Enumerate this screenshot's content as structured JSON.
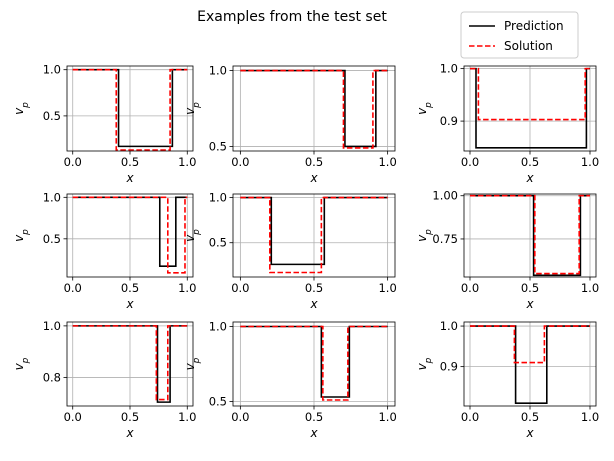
{
  "figure": {
    "title": "Examples from the test set",
    "legend": {
      "placement": "top-right",
      "items": [
        {
          "label": "Prediction",
          "color": "#000000",
          "style": "solid"
        },
        {
          "label": "Solution",
          "color": "#ff0000",
          "style": "dashed"
        }
      ]
    }
  },
  "chart_data": [
    {
      "type": "line",
      "xlabel": "x",
      "ylabel": "v_p",
      "xlim": [
        -0.05,
        1.05
      ],
      "ylim": [
        0.12,
        1.04
      ],
      "grid": true,
      "xticks": [
        0.0,
        0.5,
        1.0
      ],
      "xtick_labels": [
        "0.0",
        "0.5",
        "1.0"
      ],
      "yticks": [
        0.5,
        1.0
      ],
      "ytick_labels": [
        "0.5",
        "1.0"
      ],
      "series": [
        {
          "name": "Prediction",
          "color": "#000000",
          "dash": "solid",
          "x": [
            0,
            0.4,
            0.4,
            0.87,
            0.87,
            1
          ],
          "y": [
            1.0,
            1.0,
            0.17,
            0.17,
            1.0,
            1.0
          ]
        },
        {
          "name": "Solution",
          "color": "#ff0000",
          "dash": "dashed",
          "x": [
            0,
            0.38,
            0.38,
            0.85,
            0.85,
            1
          ],
          "y": [
            1.0,
            1.0,
            0.13,
            0.13,
            1.0,
            1.0
          ]
        }
      ]
    },
    {
      "type": "line",
      "xlabel": "x",
      "ylabel": "v_p",
      "xlim": [
        -0.05,
        1.05
      ],
      "ylim": [
        0.47,
        1.03
      ],
      "grid": true,
      "xticks": [
        0.0,
        0.5,
        1.0
      ],
      "xtick_labels": [
        "0.0",
        "0.5",
        "1.0"
      ],
      "yticks": [
        0.5,
        1.0
      ],
      "ytick_labels": [
        "0.5",
        "1.0"
      ],
      "series": [
        {
          "name": "Prediction",
          "color": "#000000",
          "dash": "solid",
          "x": [
            0,
            0.71,
            0.71,
            0.92,
            0.92,
            1
          ],
          "y": [
            1.0,
            1.0,
            0.5,
            0.5,
            1.0,
            1.0
          ]
        },
        {
          "name": "Solution",
          "color": "#ff0000",
          "dash": "dashed",
          "x": [
            0,
            0.7,
            0.7,
            0.9,
            0.9,
            1
          ],
          "y": [
            1.0,
            1.0,
            0.49,
            0.49,
            1.0,
            1.0
          ]
        }
      ]
    },
    {
      "type": "line",
      "xlabel": "x",
      "ylabel": "v_p",
      "xlim": [
        -0.05,
        1.05
      ],
      "ylim": [
        0.843,
        1.005
      ],
      "grid": true,
      "xticks": [
        0.0,
        0.5,
        1.0
      ],
      "xtick_labels": [
        "0.0",
        "0.5",
        "1.0"
      ],
      "yticks": [
        0.9,
        1.0
      ],
      "ytick_labels": [
        "0.9",
        "1.0"
      ],
      "series": [
        {
          "name": "Prediction",
          "color": "#000000",
          "dash": "solid",
          "x": [
            0,
            0.05,
            0.05,
            0.97,
            0.97,
            1
          ],
          "y": [
            1.0,
            1.0,
            0.849,
            0.849,
            1.0,
            1.0
          ]
        },
        {
          "name": "Solution",
          "color": "#ff0000",
          "dash": "dashed",
          "x": [
            0,
            0.07,
            0.07,
            0.96,
            0.96,
            1
          ],
          "y": [
            1.0,
            1.0,
            0.903,
            0.903,
            1.0,
            1.0
          ]
        }
      ]
    },
    {
      "type": "line",
      "xlabel": "x",
      "ylabel": "v_p",
      "xlim": [
        -0.05,
        1.05
      ],
      "ylim": [
        0.04,
        1.04
      ],
      "grid": true,
      "xticks": [
        0.0,
        0.5,
        1.0
      ],
      "xtick_labels": [
        "0.0",
        "0.5",
        "1.0"
      ],
      "yticks": [
        0.5,
        1.0
      ],
      "ytick_labels": [
        "0.5",
        "1.0"
      ],
      "series": [
        {
          "name": "Prediction",
          "color": "#000000",
          "dash": "solid",
          "x": [
            0,
            0.76,
            0.76,
            0.9,
            0.9,
            1
          ],
          "y": [
            1.0,
            1.0,
            0.17,
            0.17,
            1.0,
            1.0
          ]
        },
        {
          "name": "Solution",
          "color": "#ff0000",
          "dash": "dashed",
          "x": [
            0,
            0.83,
            0.83,
            0.98,
            0.98,
            1
          ],
          "y": [
            1.0,
            1.0,
            0.09,
            0.09,
            1.0,
            1.0
          ]
        }
      ]
    },
    {
      "type": "line",
      "xlabel": "x",
      "ylabel": "v_p",
      "xlim": [
        -0.05,
        1.05
      ],
      "ylim": [
        0.12,
        1.04
      ],
      "grid": true,
      "xticks": [
        0.0,
        0.5,
        1.0
      ],
      "xtick_labels": [
        "0.0",
        "0.5",
        "1.0"
      ],
      "yticks": [
        0.5,
        1.0
      ],
      "ytick_labels": [
        "0.5",
        "1.0"
      ],
      "series": [
        {
          "name": "Prediction",
          "color": "#000000",
          "dash": "solid",
          "x": [
            0,
            0.21,
            0.21,
            0.57,
            0.57,
            1
          ],
          "y": [
            1.0,
            1.0,
            0.26,
            0.26,
            1.0,
            1.0
          ]
        },
        {
          "name": "Solution",
          "color": "#ff0000",
          "dash": "dashed",
          "x": [
            0,
            0.2,
            0.2,
            0.55,
            0.55,
            1
          ],
          "y": [
            1.0,
            1.0,
            0.17,
            0.17,
            1.0,
            1.0
          ]
        }
      ]
    },
    {
      "type": "line",
      "xlabel": "x",
      "ylabel": "v_p",
      "xlim": [
        -0.05,
        1.05
      ],
      "ylim": [
        0.53,
        1.01
      ],
      "grid": true,
      "xticks": [
        0.0,
        0.5,
        1.0
      ],
      "xtick_labels": [
        "0.0",
        "0.5",
        "1.0"
      ],
      "yticks": [
        0.75,
        1.0
      ],
      "ytick_labels": [
        "0.75",
        "1.00"
      ],
      "series": [
        {
          "name": "Prediction",
          "color": "#000000",
          "dash": "solid",
          "x": [
            0,
            0.53,
            0.53,
            0.92,
            0.92,
            1
          ],
          "y": [
            1.0,
            1.0,
            0.54,
            0.54,
            1.0,
            1.0
          ]
        },
        {
          "name": "Solution",
          "color": "#ff0000",
          "dash": "dashed",
          "x": [
            0,
            0.54,
            0.54,
            0.91,
            0.91,
            1
          ],
          "y": [
            1.0,
            1.0,
            0.55,
            0.55,
            1.0,
            1.0
          ]
        }
      ]
    },
    {
      "type": "line",
      "xlabel": "x",
      "ylabel": "v_p",
      "xlim": [
        -0.05,
        1.05
      ],
      "ylim": [
        0.69,
        1.015
      ],
      "grid": true,
      "xticks": [
        0.0,
        0.5,
        1.0
      ],
      "xtick_labels": [
        "0.0",
        "0.5",
        "1.0"
      ],
      "yticks": [
        0.8,
        1.0
      ],
      "ytick_labels": [
        "0.8",
        "1.0"
      ],
      "series": [
        {
          "name": "Prediction",
          "color": "#000000",
          "dash": "solid",
          "x": [
            0,
            0.74,
            0.74,
            0.85,
            0.85,
            1
          ],
          "y": [
            1.0,
            1.0,
            0.705,
            0.705,
            1.0,
            1.0
          ]
        },
        {
          "name": "Solution",
          "color": "#ff0000",
          "dash": "dashed",
          "x": [
            0,
            0.73,
            0.73,
            0.83,
            0.83,
            1
          ],
          "y": [
            1.0,
            1.0,
            0.715,
            0.715,
            1.0,
            1.0
          ]
        }
      ]
    },
    {
      "type": "line",
      "xlabel": "x",
      "ylabel": "v_p",
      "xlim": [
        -0.05,
        1.05
      ],
      "ylim": [
        0.47,
        1.03
      ],
      "grid": true,
      "xticks": [
        0.0,
        0.5,
        1.0
      ],
      "xtick_labels": [
        "0.0",
        "0.5",
        "1.0"
      ],
      "yticks": [
        0.5,
        1.0
      ],
      "ytick_labels": [
        "0.5",
        "1.0"
      ],
      "series": [
        {
          "name": "Prediction",
          "color": "#000000",
          "dash": "solid",
          "x": [
            0,
            0.55,
            0.55,
            0.74,
            0.74,
            1
          ],
          "y": [
            1.0,
            1.0,
            0.53,
            0.53,
            1.0,
            1.0
          ]
        },
        {
          "name": "Solution",
          "color": "#ff0000",
          "dash": "dashed",
          "x": [
            0,
            0.56,
            0.56,
            0.73,
            0.73,
            1
          ],
          "y": [
            1.0,
            1.0,
            0.51,
            0.51,
            1.0,
            1.0
          ]
        }
      ]
    },
    {
      "type": "line",
      "xlabel": "x",
      "ylabel": "v_p",
      "xlim": [
        -0.05,
        1.05
      ],
      "ylim": [
        0.803,
        1.01
      ],
      "grid": true,
      "xticks": [
        0.0,
        0.5,
        1.0
      ],
      "xtick_labels": [
        "0.0",
        "0.5",
        "1.0"
      ],
      "yticks": [
        0.9,
        1.0
      ],
      "ytick_labels": [
        "0.9",
        "1.0"
      ],
      "series": [
        {
          "name": "Prediction",
          "color": "#000000",
          "dash": "solid",
          "x": [
            0,
            0.38,
            0.38,
            0.64,
            0.64,
            1
          ],
          "y": [
            1.0,
            1.0,
            0.81,
            0.81,
            1.0,
            1.0
          ]
        },
        {
          "name": "Solution",
          "color": "#ff0000",
          "dash": "dashed",
          "x": [
            0,
            0.37,
            0.37,
            0.62,
            0.62,
            1
          ],
          "y": [
            1.0,
            1.0,
            0.91,
            0.91,
            1.0,
            1.0
          ]
        }
      ]
    }
  ]
}
